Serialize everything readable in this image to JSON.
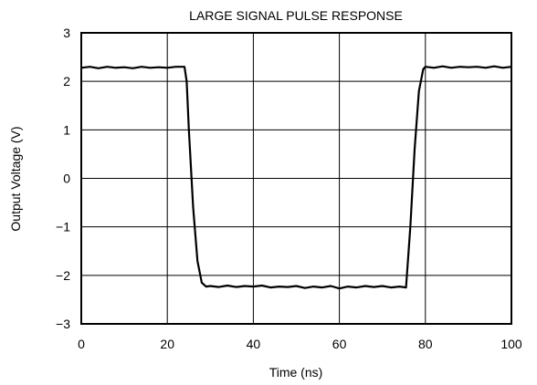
{
  "chart_data": {
    "type": "line",
    "title": "LARGE SIGNAL PULSE RESPONSE",
    "xlabel": "Time (ns)",
    "ylabel": "Output Voltage (V)",
    "xlim": [
      0,
      100
    ],
    "ylim": [
      -3,
      3
    ],
    "xticks": [
      0,
      20,
      40,
      60,
      80,
      100
    ],
    "xtick_labels": [
      "0",
      "20",
      "40",
      "60",
      "80",
      "100"
    ],
    "yticks": [
      -3,
      -2,
      -1,
      0,
      1,
      2,
      3
    ],
    "ytick_labels": [
      "−3",
      "−2",
      "−1",
      "0",
      "1",
      "2",
      "3"
    ],
    "grid": true,
    "series": [
      {
        "x": [
          0,
          2,
          4,
          6,
          8,
          10,
          12,
          14,
          16,
          18,
          20,
          22,
          24,
          24.5,
          25,
          26,
          27,
          28,
          29,
          30,
          32,
          34,
          36,
          38,
          40,
          42,
          44,
          46,
          48,
          50,
          52,
          54,
          56,
          58,
          60,
          62,
          64,
          66,
          68,
          70,
          72,
          74,
          75.5,
          76.5,
          77.5,
          78.5,
          79.5,
          80,
          82,
          84,
          86,
          88,
          90,
          92,
          94,
          96,
          98,
          100
        ],
        "y": [
          2.28,
          2.3,
          2.27,
          2.3,
          2.28,
          2.29,
          2.27,
          2.3,
          2.28,
          2.29,
          2.28,
          2.3,
          2.3,
          2.0,
          1.0,
          -0.6,
          -1.7,
          -2.15,
          -2.23,
          -2.22,
          -2.24,
          -2.21,
          -2.24,
          -2.22,
          -2.23,
          -2.21,
          -2.25,
          -2.23,
          -2.24,
          -2.22,
          -2.26,
          -2.23,
          -2.25,
          -2.22,
          -2.27,
          -2.23,
          -2.25,
          -2.22,
          -2.24,
          -2.22,
          -2.25,
          -2.23,
          -2.25,
          -1.0,
          0.6,
          1.8,
          2.25,
          2.3,
          2.28,
          2.31,
          2.28,
          2.3,
          2.29,
          2.3,
          2.28,
          2.31,
          2.28,
          2.3
        ]
      }
    ]
  }
}
